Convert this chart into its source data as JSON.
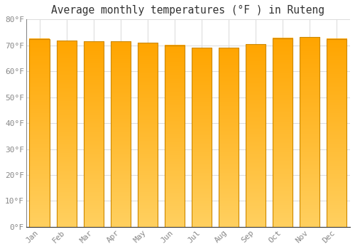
{
  "title": "Average monthly temperatures (°F ) in Ruteng",
  "months": [
    "Jan",
    "Feb",
    "Mar",
    "Apr",
    "May",
    "Jun",
    "Jul",
    "Aug",
    "Sep",
    "Oct",
    "Nov",
    "Dec"
  ],
  "values": [
    72.5,
    71.8,
    71.5,
    71.5,
    71.0,
    70.0,
    69.0,
    69.0,
    70.5,
    72.8,
    73.2,
    72.5
  ],
  "ylim": [
    0,
    80
  ],
  "yticks": [
    0,
    10,
    20,
    30,
    40,
    50,
    60,
    70,
    80
  ],
  "ytick_labels": [
    "0°F",
    "10°F",
    "20°F",
    "30°F",
    "40°F",
    "50°F",
    "60°F",
    "70°F",
    "80°F"
  ],
  "background_color": "#FFFFFF",
  "grid_color": "#DDDDDD",
  "bar_edge_color": "#CC8800",
  "bar_top_color": "#FFA500",
  "bar_bottom_color": "#FFD060",
  "title_fontsize": 10.5,
  "tick_fontsize": 8,
  "font_family": "monospace",
  "tick_color": "#888888"
}
